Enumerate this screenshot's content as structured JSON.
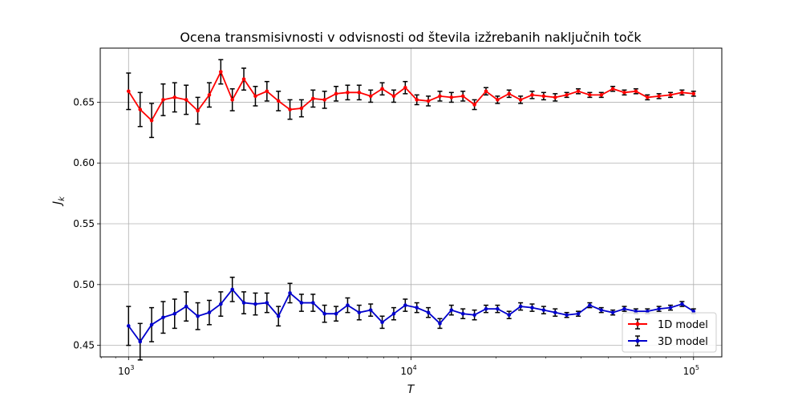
{
  "chart_data": {
    "type": "line",
    "title": "Ocena transmisivnosti v odvisnosti od števila izžrebanih naključnih točk",
    "xlabel": "T",
    "ylabel": "J",
    "ylabel_subscript": "k",
    "x_scale": "log",
    "xlim": [
      794,
      125893
    ],
    "ylim": [
      0.4405,
      0.6945
    ],
    "grid": true,
    "legend_position": "lower right",
    "x_major_ticks": [
      {
        "value": 1000,
        "base": "10",
        "exp": "3"
      },
      {
        "value": 10000,
        "base": "10",
        "exp": "4"
      },
      {
        "value": 100000,
        "base": "10",
        "exp": "5"
      }
    ],
    "y_ticks": [
      {
        "value": 0.45,
        "label": "0.45"
      },
      {
        "value": 0.5,
        "label": "0.50"
      },
      {
        "value": 0.55,
        "label": "0.55"
      },
      {
        "value": 0.6,
        "label": "0.60"
      },
      {
        "value": 0.65,
        "label": "0.65"
      }
    ],
    "x": [
      1000,
      1099,
      1207,
      1326,
      1456,
      1600,
      1758,
      1931,
      2121,
      2330,
      2559,
      2812,
      3089,
      3393,
      3727,
      4094,
      4498,
      4941,
      5428,
      5963,
      6551,
      7196,
      7905,
      8685,
      9540,
      10481,
      11514,
      12649,
      13895,
      15264,
      16768,
      18421,
      20236,
      22230,
      24421,
      26827,
      29471,
      32375,
      35565,
      39069,
      42919,
      47148,
      51794,
      56898,
      62505,
      68665,
      75431,
      82864,
      91030,
      100000
    ],
    "series": [
      {
        "name": "1D model",
        "color": "#ff0000",
        "values": [
          0.659,
          0.644,
          0.635,
          0.652,
          0.654,
          0.652,
          0.643,
          0.656,
          0.675,
          0.652,
          0.669,
          0.655,
          0.659,
          0.651,
          0.644,
          0.645,
          0.653,
          0.652,
          0.657,
          0.658,
          0.658,
          0.655,
          0.661,
          0.655,
          0.662,
          0.652,
          0.651,
          0.655,
          0.654,
          0.655,
          0.648,
          0.659,
          0.652,
          0.657,
          0.652,
          0.656,
          0.655,
          0.654,
          0.656,
          0.659,
          0.656,
          0.656,
          0.661,
          0.658,
          0.659,
          0.654,
          0.655,
          0.656,
          0.658,
          0.657
        ],
        "errors": [
          0.015,
          0.014,
          0.014,
          0.013,
          0.012,
          0.012,
          0.011,
          0.01,
          0.01,
          0.009,
          0.009,
          0.008,
          0.008,
          0.008,
          0.008,
          0.007,
          0.007,
          0.007,
          0.006,
          0.006,
          0.006,
          0.005,
          0.005,
          0.005,
          0.005,
          0.004,
          0.004,
          0.004,
          0.004,
          0.004,
          0.004,
          0.003,
          0.003,
          0.003,
          0.003,
          0.003,
          0.003,
          0.003,
          0.002,
          0.002,
          0.002,
          0.002,
          0.002,
          0.002,
          0.002,
          0.002,
          0.002,
          0.002,
          0.002,
          0.002
        ]
      },
      {
        "name": "3D model",
        "color": "#0000cc",
        "values": [
          0.466,
          0.453,
          0.467,
          0.473,
          0.476,
          0.482,
          0.474,
          0.477,
          0.484,
          0.496,
          0.485,
          0.484,
          0.485,
          0.474,
          0.493,
          0.485,
          0.485,
          0.476,
          0.476,
          0.483,
          0.477,
          0.479,
          0.469,
          0.476,
          0.483,
          0.481,
          0.477,
          0.468,
          0.479,
          0.476,
          0.475,
          0.48,
          0.48,
          0.475,
          0.482,
          0.481,
          0.479,
          0.477,
          0.475,
          0.476,
          0.483,
          0.479,
          0.477,
          0.48,
          0.478,
          0.478,
          0.48,
          0.481,
          0.484,
          0.478
        ],
        "errors": [
          0.016,
          0.015,
          0.014,
          0.013,
          0.012,
          0.012,
          0.011,
          0.01,
          0.01,
          0.01,
          0.009,
          0.009,
          0.008,
          0.008,
          0.008,
          0.007,
          0.007,
          0.007,
          0.006,
          0.006,
          0.006,
          0.005,
          0.005,
          0.005,
          0.005,
          0.004,
          0.004,
          0.004,
          0.004,
          0.004,
          0.004,
          0.003,
          0.003,
          0.003,
          0.003,
          0.003,
          0.003,
          0.003,
          0.002,
          0.002,
          0.002,
          0.002,
          0.002,
          0.002,
          0.002,
          0.002,
          0.002,
          0.002,
          0.002,
          0.002
        ]
      }
    ]
  }
}
